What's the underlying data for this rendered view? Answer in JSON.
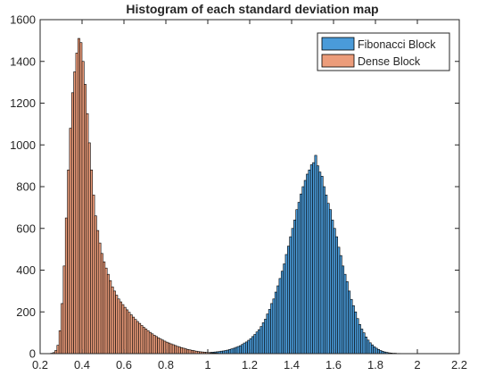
{
  "chart_data": {
    "type": "bar",
    "title": "Histogram of each standard deviation map",
    "xlabel": "",
    "ylabel": "",
    "xlim": [
      0.2,
      2.2
    ],
    "ylim": [
      0,
      1600
    ],
    "x_ticks": [
      "0.2",
      "0.4",
      "0.6",
      "0.8",
      "1",
      "1.2",
      "1.4",
      "1.6",
      "1.8",
      "2",
      "2.2"
    ],
    "y_ticks": [
      "0",
      "200",
      "400",
      "600",
      "800",
      "1000",
      "1200",
      "1400",
      "1600"
    ],
    "legend_position": "top-right",
    "grid": false,
    "bin_width": 0.01,
    "series": [
      {
        "name": "Fibonacci Block",
        "color": "#4a9bd9",
        "x_start": 1.0,
        "values": [
          5,
          6,
          7,
          8,
          9,
          10,
          12,
          13,
          15,
          17,
          20,
          23,
          26,
          30,
          34,
          38,
          44,
          51,
          56,
          64,
          72,
          82,
          92,
          104,
          115,
          130,
          148,
          165,
          190,
          212,
          240,
          262,
          295,
          325,
          360,
          395,
          430,
          475,
          515,
          560,
          600,
          640,
          690,
          725,
          765,
          800,
          830,
          860,
          880,
          905,
          915,
          950,
          900,
          870,
          850,
          800,
          760,
          720,
          690,
          640,
          600,
          560,
          510,
          470,
          420,
          380,
          345,
          300,
          260,
          230,
          200,
          168,
          140,
          118,
          100,
          80,
          65,
          52,
          42,
          33,
          26,
          20,
          15,
          11,
          8,
          6,
          4,
          3,
          2,
          2,
          1,
          1
        ]
      },
      {
        "name": "Dense Block",
        "color": "#ec9c7a",
        "x_start": 0.25,
        "values": [
          2,
          5,
          15,
          40,
          110,
          240,
          420,
          650,
          880,
          1080,
          1250,
          1350,
          1440,
          1510,
          1490,
          1400,
          1290,
          1150,
          1010,
          880,
          760,
          660,
          590,
          530,
          480,
          440,
          410,
          380,
          350,
          320,
          300,
          280,
          262,
          248,
          235,
          222,
          210,
          198,
          186,
          175,
          164,
          154,
          145,
          135,
          126,
          118,
          110,
          102,
          95,
          88,
          82,
          76,
          70,
          65,
          60,
          55,
          51,
          47,
          43,
          39,
          35,
          32,
          29,
          26,
          23,
          20,
          18,
          16,
          14,
          12,
          10,
          9,
          8,
          7,
          6,
          5,
          4,
          3,
          3,
          2
        ]
      }
    ]
  }
}
